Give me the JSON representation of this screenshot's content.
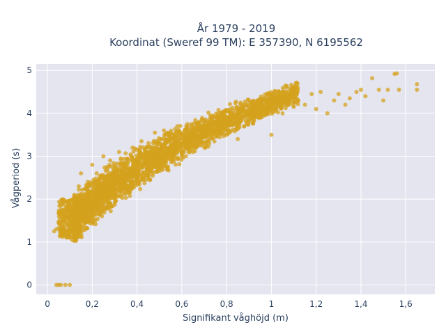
{
  "chart_data": {
    "type": "scatter",
    "title": "År 1979 - 2019",
    "subtitle": "Koordinat (Sweref 99 TM): E 357390, N 6195562",
    "xlabel": "Signifikant våghöjd (m)",
    "ylabel": "Vågperiod (s)",
    "xlim": [
      -0.05,
      1.73
    ],
    "ylim": [
      -0.22,
      5.15
    ],
    "xticks": [
      0,
      0.2,
      0.4,
      0.6,
      0.8,
      1,
      1.2,
      1.4,
      1.6
    ],
    "xtick_labels": [
      "0",
      "0,2",
      "0,4",
      "0,6",
      "0,8",
      "1",
      "1,2",
      "1,4",
      "1,6"
    ],
    "yticks": [
      0,
      1,
      2,
      3,
      4,
      5
    ],
    "ytick_labels": [
      "0",
      "1",
      "2",
      "3",
      "4",
      "5"
    ],
    "grid": true,
    "colors": {
      "marker": "#D4A21E",
      "plot_bg": "#E5E5F0",
      "grid": "#ffffff",
      "text": "#2a3f5f"
    },
    "series": [
      {
        "points": [
          [
            0.04,
            0.0
          ],
          [
            0.05,
            0.0
          ],
          [
            0.06,
            0.0
          ],
          [
            0.08,
            0.0
          ],
          [
            0.1,
            0.0
          ],
          [
            0.03,
            1.25
          ],
          [
            0.04,
            1.3
          ],
          [
            0.05,
            1.45
          ],
          [
            0.06,
            1.9
          ],
          [
            0.07,
            1.75
          ],
          [
            0.08,
            1.6
          ],
          [
            0.1,
            1.1
          ],
          [
            0.11,
            1.05
          ],
          [
            0.12,
            1.3
          ],
          [
            0.12,
            2.1
          ],
          [
            0.14,
            2.3
          ],
          [
            0.15,
            1.8
          ],
          [
            0.15,
            2.6
          ],
          [
            0.18,
            2.4
          ],
          [
            0.18,
            1.85
          ],
          [
            0.2,
            2.0
          ],
          [
            0.2,
            2.8
          ],
          [
            0.22,
            2.6
          ],
          [
            0.24,
            2.2
          ],
          [
            0.25,
            3.0
          ],
          [
            0.28,
            2.9
          ],
          [
            0.3,
            2.4
          ],
          [
            0.32,
            3.1
          ],
          [
            0.35,
            2.7
          ],
          [
            0.38,
            3.2
          ],
          [
            0.4,
            2.6
          ],
          [
            0.42,
            3.35
          ],
          [
            0.45,
            3.0
          ],
          [
            0.48,
            3.55
          ],
          [
            0.5,
            2.9
          ],
          [
            0.52,
            3.6
          ],
          [
            0.55,
            3.2
          ],
          [
            0.58,
            3.7
          ],
          [
            0.6,
            3.1
          ],
          [
            0.62,
            3.6
          ],
          [
            0.65,
            3.4
          ],
          [
            0.68,
            3.8
          ],
          [
            0.7,
            3.3
          ],
          [
            0.72,
            3.75
          ],
          [
            0.75,
            3.5
          ],
          [
            0.78,
            3.95
          ],
          [
            0.8,
            3.5
          ],
          [
            0.82,
            4.0
          ],
          [
            0.85,
            3.4
          ],
          [
            0.88,
            4.05
          ],
          [
            0.9,
            3.8
          ],
          [
            0.92,
            4.1
          ],
          [
            0.95,
            3.9
          ],
          [
            0.98,
            4.15
          ],
          [
            1.0,
            3.5
          ],
          [
            1.02,
            4.2
          ],
          [
            1.05,
            4.0
          ],
          [
            1.08,
            4.25
          ],
          [
            1.1,
            4.15
          ],
          [
            1.12,
            4.3
          ],
          [
            1.15,
            4.2
          ],
          [
            1.18,
            4.45
          ],
          [
            1.2,
            4.1
          ],
          [
            1.22,
            4.5
          ],
          [
            1.25,
            4.0
          ],
          [
            1.28,
            4.3
          ],
          [
            1.3,
            4.45
          ],
          [
            1.33,
            4.2
          ],
          [
            1.35,
            4.35
          ],
          [
            1.38,
            4.5
          ],
          [
            1.4,
            4.55
          ],
          [
            1.42,
            4.4
          ],
          [
            1.45,
            4.82
          ],
          [
            1.48,
            4.55
          ],
          [
            1.5,
            4.3
          ],
          [
            1.52,
            4.55
          ],
          [
            1.55,
            4.92
          ],
          [
            1.56,
            4.93
          ],
          [
            1.57,
            4.55
          ],
          [
            1.65,
            4.68
          ],
          [
            1.65,
            4.55
          ]
        ]
      }
    ]
  }
}
